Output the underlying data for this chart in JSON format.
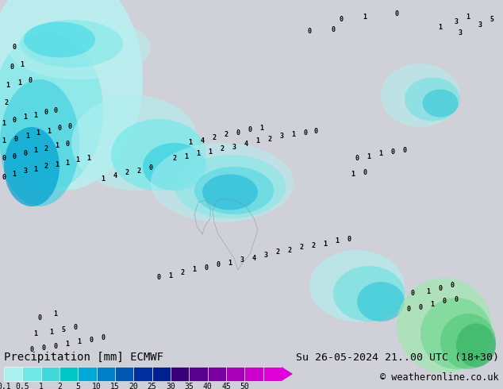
{
  "title_left": "Precipitation [mm] ECMWF",
  "title_right": "Su 26-05-2024 21..00 UTC (18+30)",
  "subtitle_right": "© weatheronline.co.uk",
  "colorbar_labels": [
    "0.1",
    "0.5",
    "1",
    "2",
    "5",
    "10",
    "15",
    "20",
    "25",
    "30",
    "35",
    "40",
    "45",
    "50"
  ],
  "colorbar_colors": [
    "#aaf0f0",
    "#70e8e8",
    "#40d8d8",
    "#00c8c8",
    "#00a8d8",
    "#0080c8",
    "#0058b0",
    "#0030a0",
    "#002090",
    "#380078",
    "#580090",
    "#7800a0",
    "#a800b8",
    "#cc00cc",
    "#e000d8"
  ],
  "bg_color": "#d0d0d8",
  "land_color": "#c8c8c8",
  "sea_color": "#d8e8f0",
  "text_color": "#000000",
  "label_fontsize": 8,
  "title_fontsize": 10,
  "fig_width": 6.34,
  "fig_height": 4.9,
  "dpi": 100,
  "map_bg": "#d0d0d8",
  "precip_light_cyan": "#b0f0f0",
  "precip_cyan": "#60e0e0",
  "precip_blue_light": "#40c8e0",
  "precip_blue": "#0070c0",
  "precip_dark_blue": "#0030a0",
  "precip_purple": "#6000a0",
  "precip_magenta": "#c000c0"
}
